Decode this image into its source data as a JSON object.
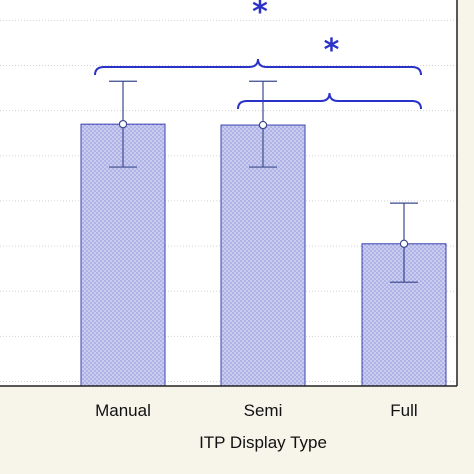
{
  "chart_data": {
    "type": "bar",
    "xlabel": "ITP Display Type",
    "ylabel": "",
    "title": "",
    "categories": [
      "Manual",
      "Semi",
      "Full"
    ],
    "values": [
      5.7,
      5.68,
      3.05
    ],
    "error_low": [
      4.75,
      4.75,
      2.2
    ],
    "error_high": [
      6.65,
      6.65,
      3.95
    ],
    "ylim": [
      -0.1,
      8.45
    ],
    "grid": true,
    "significance": [
      {
        "from": "Manual",
        "to": "Full",
        "label": "*"
      },
      {
        "from": "Semi",
        "to": "Full",
        "label": "*"
      }
    ],
    "colors": {
      "bar_fill": "#c4c7ee",
      "bar_stroke": "#3a3fb0",
      "bracket": "#2a32c8",
      "plot_background": "#ffffff",
      "page_background": "#f7f4ea"
    }
  }
}
